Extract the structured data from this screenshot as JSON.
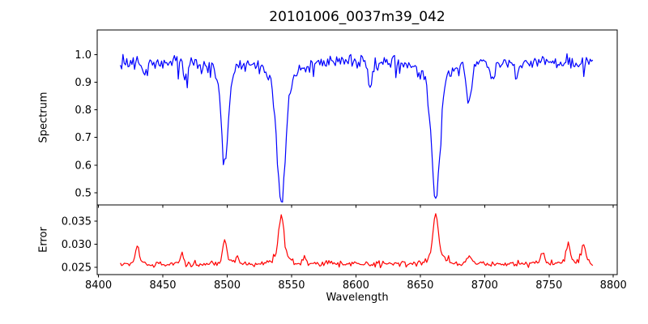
{
  "figure": {
    "title": "20101006_0037m39_042",
    "background": "#ffffff",
    "text_color": "#000000",
    "axis_color": "#000000"
  },
  "x_axis": {
    "label": "Wavelength",
    "lim": [
      8399,
      8803
    ],
    "ticks": [
      {
        "v": 8400,
        "label": "8400"
      },
      {
        "v": 8450,
        "label": "8450"
      },
      {
        "v": 8500,
        "label": "8500"
      },
      {
        "v": 8550,
        "label": "8550"
      },
      {
        "v": 8600,
        "label": "8600"
      },
      {
        "v": 8650,
        "label": "8650"
      },
      {
        "v": 8700,
        "label": "8700"
      },
      {
        "v": 8750,
        "label": "8750"
      },
      {
        "v": 8800,
        "label": "8800"
      }
    ]
  },
  "chart_data": [
    {
      "type": "line",
      "name": "spectrum",
      "ylabel": "Spectrum",
      "color": "#0000ff",
      "ylim": [
        0.456,
        1.089
      ],
      "yticks": [
        {
          "v": 0.5,
          "label": "0.5"
        },
        {
          "v": 0.6,
          "label": "0.6"
        },
        {
          "v": 0.7,
          "label": "0.7"
        },
        {
          "v": 0.8,
          "label": "0.8"
        },
        {
          "v": 0.9,
          "label": "0.9"
        },
        {
          "v": 1.0,
          "label": "1.0"
        }
      ],
      "x_start": 8417,
      "x_end": 8784,
      "x_step": 1,
      "continuum": 0.972,
      "noise_sigma": 0.0135,
      "spike_prob": 0.055,
      "spike_max": 0.045,
      "seed": 20101006,
      "absorption_lines": [
        {
          "center": 8436,
          "depth": 0.055,
          "sigma": 1.2
        },
        {
          "center": 8468,
          "depth": 0.06,
          "sigma": 1.3
        },
        {
          "center": 8498,
          "depth": 0.36,
          "sigma": 2.6
        },
        {
          "center": 8542,
          "depth": 0.505,
          "sigma": 3.2
        },
        {
          "center": 8611,
          "depth": 0.085,
          "sigma": 1.5
        },
        {
          "center": 8662,
          "depth": 0.5,
          "sigma": 3.1
        },
        {
          "center": 8688,
          "depth": 0.16,
          "sigma": 1.6
        },
        {
          "center": 8706,
          "depth": 0.07,
          "sigma": 1.3
        },
        {
          "center": 8725,
          "depth": 0.06,
          "sigma": 1.3
        }
      ]
    },
    {
      "type": "line",
      "name": "error",
      "ylabel": "Error",
      "color": "#ff0000",
      "ylim": [
        0.0234,
        0.0385
      ],
      "yticks": [
        {
          "v": 0.025,
          "label": "0.025"
        },
        {
          "v": 0.03,
          "label": "0.030"
        },
        {
          "v": 0.035,
          "label": "0.035"
        }
      ],
      "x_start": 8417,
      "x_end": 8784,
      "x_step": 1,
      "baseline": 0.0257,
      "noise_sigma": 0.00032,
      "spike_prob": 0.05,
      "spike_max": 0.0012,
      "seed": 37042,
      "peaks": [
        {
          "center": 8430,
          "height": 0.004,
          "sigma": 1.2
        },
        {
          "center": 8465,
          "height": 0.0022,
          "sigma": 1.0
        },
        {
          "center": 8498,
          "height": 0.005,
          "sigma": 1.4
        },
        {
          "center": 8508,
          "height": 0.0018,
          "sigma": 1.0
        },
        {
          "center": 8542,
          "height": 0.0104,
          "sigma": 2.0
        },
        {
          "center": 8560,
          "height": 0.0018,
          "sigma": 1.0
        },
        {
          "center": 8662,
          "height": 0.0109,
          "sigma": 2.0
        },
        {
          "center": 8688,
          "height": 0.002,
          "sigma": 1.2
        },
        {
          "center": 8745,
          "height": 0.0028,
          "sigma": 1.2
        },
        {
          "center": 8765,
          "height": 0.0048,
          "sigma": 1.3
        },
        {
          "center": 8777,
          "height": 0.0046,
          "sigma": 1.3
        }
      ]
    }
  ]
}
